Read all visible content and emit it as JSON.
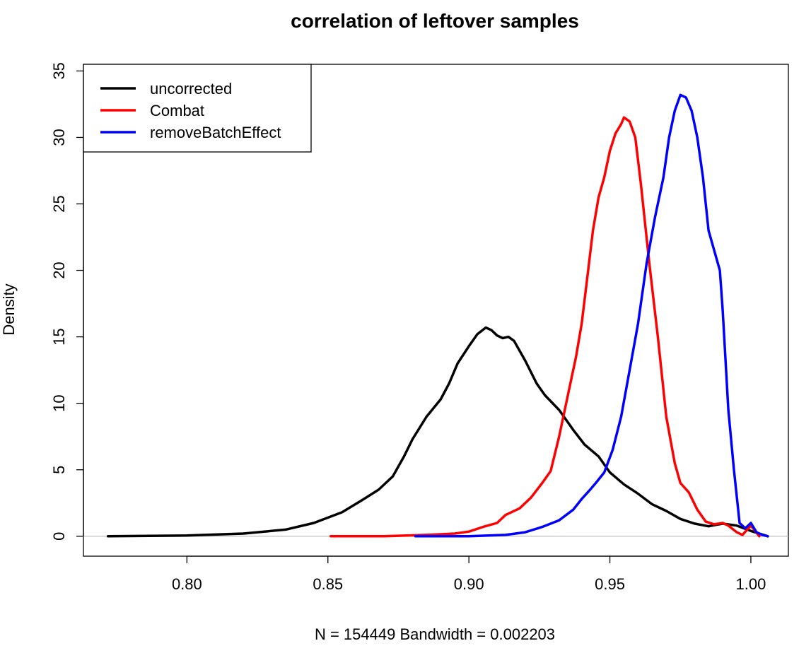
{
  "chart_data": {
    "type": "line",
    "title": "correlation of leftover samples",
    "xlabel": "N = 154449   Bandwidth = 0.002203",
    "ylabel": "Density",
    "xlim": [
      0.7633,
      1.0133
    ],
    "ylim": [
      -1.5,
      35.5
    ],
    "x_ticks": [
      0.8,
      0.85,
      0.9,
      0.95,
      1.0
    ],
    "x_tick_labels": [
      "0.80",
      "0.85",
      "0.90",
      "0.95",
      "1.00"
    ],
    "y_ticks": [
      0,
      5,
      10,
      15,
      20,
      25,
      30,
      35
    ],
    "y_tick_labels": [
      "0",
      "5",
      "10",
      "15",
      "20",
      "25",
      "30",
      "35"
    ],
    "zero_baseline": true,
    "grid": false,
    "legend_position": "top-left",
    "series": [
      {
        "name": "uncorrected",
        "color": "#000000",
        "points": [
          [
            0.772,
            0.0
          ],
          [
            0.8,
            0.05
          ],
          [
            0.82,
            0.2
          ],
          [
            0.835,
            0.5
          ],
          [
            0.845,
            1.0
          ],
          [
            0.855,
            1.8
          ],
          [
            0.862,
            2.7
          ],
          [
            0.868,
            3.5
          ],
          [
            0.873,
            4.5
          ],
          [
            0.877,
            6.0
          ],
          [
            0.88,
            7.3
          ],
          [
            0.885,
            9.0
          ],
          [
            0.89,
            10.3
          ],
          [
            0.893,
            11.5
          ],
          [
            0.896,
            13.0
          ],
          [
            0.9,
            14.3
          ],
          [
            0.903,
            15.2
          ],
          [
            0.906,
            15.7
          ],
          [
            0.908,
            15.5
          ],
          [
            0.91,
            15.1
          ],
          [
            0.912,
            14.9
          ],
          [
            0.914,
            15.0
          ],
          [
            0.916,
            14.7
          ],
          [
            0.92,
            13.2
          ],
          [
            0.924,
            11.5
          ],
          [
            0.927,
            10.6
          ],
          [
            0.932,
            9.5
          ],
          [
            0.937,
            8.0
          ],
          [
            0.941,
            6.9
          ],
          [
            0.946,
            6.0
          ],
          [
            0.95,
            4.8
          ],
          [
            0.955,
            3.9
          ],
          [
            0.96,
            3.2
          ],
          [
            0.965,
            2.4
          ],
          [
            0.97,
            1.9
          ],
          [
            0.975,
            1.3
          ],
          [
            0.98,
            0.95
          ],
          [
            0.985,
            0.75
          ],
          [
            0.99,
            0.95
          ],
          [
            0.995,
            0.8
          ],
          [
            1.0,
            0.4
          ],
          [
            1.006,
            0.0
          ]
        ]
      },
      {
        "name": "Combat",
        "color": "#ff0000",
        "points": [
          [
            0.851,
            0.0
          ],
          [
            0.87,
            0.0
          ],
          [
            0.885,
            0.1
          ],
          [
            0.895,
            0.2
          ],
          [
            0.9,
            0.35
          ],
          [
            0.905,
            0.7
          ],
          [
            0.91,
            1.0
          ],
          [
            0.913,
            1.6
          ],
          [
            0.918,
            2.1
          ],
          [
            0.922,
            2.9
          ],
          [
            0.926,
            4.0
          ],
          [
            0.929,
            4.9
          ],
          [
            0.932,
            7.5
          ],
          [
            0.935,
            10.5
          ],
          [
            0.938,
            13.5
          ],
          [
            0.94,
            16.0
          ],
          [
            0.942,
            19.5
          ],
          [
            0.944,
            23.0
          ],
          [
            0.946,
            25.5
          ],
          [
            0.948,
            27.0
          ],
          [
            0.95,
            29.0
          ],
          [
            0.952,
            30.3
          ],
          [
            0.954,
            31.0
          ],
          [
            0.955,
            31.5
          ],
          [
            0.957,
            31.2
          ],
          [
            0.959,
            30.0
          ],
          [
            0.961,
            26.5
          ],
          [
            0.964,
            20.5
          ],
          [
            0.967,
            15.0
          ],
          [
            0.97,
            9.0
          ],
          [
            0.973,
            5.5
          ],
          [
            0.975,
            4.0
          ],
          [
            0.978,
            3.3
          ],
          [
            0.981,
            2.0
          ],
          [
            0.984,
            1.1
          ],
          [
            0.987,
            0.9
          ],
          [
            0.99,
            1.0
          ],
          [
            0.992,
            0.8
          ],
          [
            0.995,
            0.3
          ],
          [
            0.997,
            0.1
          ],
          [
            1.0,
            0.8
          ],
          [
            1.003,
            0.0
          ]
        ]
      },
      {
        "name": "removeBatchEffect",
        "color": "#0000ff",
        "points": [
          [
            0.881,
            0.0
          ],
          [
            0.9,
            0.0
          ],
          [
            0.913,
            0.1
          ],
          [
            0.92,
            0.3
          ],
          [
            0.926,
            0.7
          ],
          [
            0.932,
            1.2
          ],
          [
            0.937,
            2.0
          ],
          [
            0.94,
            2.8
          ],
          [
            0.943,
            3.5
          ],
          [
            0.945,
            4.0
          ],
          [
            0.948,
            4.8
          ],
          [
            0.951,
            6.5
          ],
          [
            0.954,
            9.0
          ],
          [
            0.957,
            12.5
          ],
          [
            0.96,
            16.0
          ],
          [
            0.963,
            20.5
          ],
          [
            0.966,
            24.0
          ],
          [
            0.969,
            27.0
          ],
          [
            0.971,
            30.0
          ],
          [
            0.973,
            32.0
          ],
          [
            0.975,
            33.2
          ],
          [
            0.977,
            33.0
          ],
          [
            0.979,
            32.0
          ],
          [
            0.981,
            30.0
          ],
          [
            0.983,
            27.0
          ],
          [
            0.985,
            23.0
          ],
          [
            0.987,
            21.5
          ],
          [
            0.989,
            20.0
          ],
          [
            0.99,
            17.0
          ],
          [
            0.992,
            9.5
          ],
          [
            0.994,
            5.0
          ],
          [
            0.996,
            1.0
          ],
          [
            0.998,
            0.6
          ],
          [
            1.0,
            1.0
          ],
          [
            1.002,
            0.3
          ],
          [
            1.004,
            0.1
          ],
          [
            1.006,
            0.0
          ]
        ]
      }
    ]
  }
}
